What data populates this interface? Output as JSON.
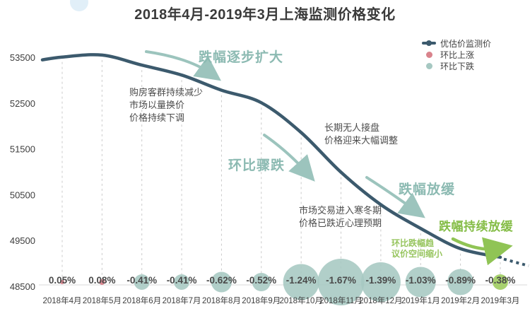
{
  "title": "2018年4月-2019年3月上海监测价格变化",
  "legend": {
    "line_label": "优估价监测价",
    "up_label": "环比上涨",
    "down_label": "环比下跌"
  },
  "annotations": {
    "decline_expanding": "跌幅逐步扩大",
    "buyers_shrinking": "购房客群持续减少\n市场以量换价\n价格持续下调",
    "mom_plunge": "环比骤跌",
    "no_buyers": "长期无人接盘\n价格迎来大幅调整",
    "winter_market": "市场交易进入寒冬期\n价格已跌近心理预期",
    "decline_slowing": "跌幅放缓",
    "decline_keep_slowing": "跌幅持续放缓",
    "mom_narrowing": "环比跌幅趋\n议价空间缩小"
  },
  "chart_data": {
    "type": "line",
    "title": "2018年4月-2019年3月上海监测价格变化",
    "categories": [
      "2018年4月",
      "2018年5月",
      "2018年6月",
      "2018年7月",
      "2018年8月",
      "2018年9月",
      "2018年10月",
      "2018年11月",
      "2018年12月",
      "2019年1月",
      "2019年2月",
      "2019年3月"
    ],
    "series": [
      {
        "name": "优估价监测价",
        "values": [
          53505,
          53548,
          53329,
          53111,
          52781,
          52508,
          51857,
          50991,
          50282,
          49764,
          49321,
          49134
        ]
      }
    ],
    "mom_change_labels": [
      "0.05%",
      "0.08%",
      "-0.41%",
      "-0.41%",
      "-0.62%",
      "-0.52%",
      "-1.24%",
      "-1.67%",
      "-1.39%",
      "-1.03%",
      "-0.89%",
      "-0.38%"
    ],
    "mom_change_values": [
      0.05,
      0.08,
      -0.41,
      -0.41,
      -0.62,
      -0.52,
      -1.24,
      -1.67,
      -1.39,
      -1.03,
      -0.89,
      -0.38
    ],
    "bubble_radii": [
      3,
      4,
      11,
      11,
      14.5,
      13,
      25.5,
      33,
      28,
      21.5,
      18.5,
      11
    ],
    "bubble_types": [
      "up",
      "up",
      "down",
      "down",
      "down",
      "down",
      "down",
      "down",
      "down",
      "down",
      "down",
      "highlight"
    ],
    "y_ticks": [
      53500,
      52500,
      51500,
      50500,
      49500,
      48500
    ],
    "ylim": [
      48500,
      53600
    ],
    "xlabel": "",
    "ylabel": "",
    "grid": "vertical-dashed",
    "legend_position": "top-right",
    "last_segment": "dotted-forecast",
    "colors": {
      "line": "#3c5a6d",
      "down_bubble": "#a6c8c2",
      "up_bubble": "#d9838c",
      "highlight_bubble": "#a3cf67",
      "teal_annotation": "#8cbab2",
      "green_annotation": "#85bd47"
    }
  }
}
